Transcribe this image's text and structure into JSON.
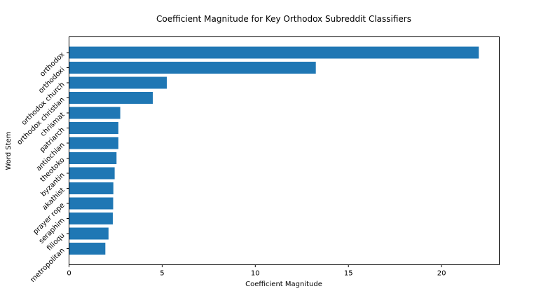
{
  "chart_data": {
    "type": "bar",
    "orientation": "horizontal",
    "title": "Coefficient Magnitude for Key Orthodox Subreddit Classifiers",
    "xlabel": "Coefficient Magnitude",
    "ylabel": "Word Stem",
    "categories": [
      "orthodox",
      "orthodoxi",
      "orthodox church",
      "orthodox christian",
      "chrismat",
      "patriarch",
      "antiochian",
      "theotoko",
      "byzantin",
      "akathist",
      "prayer rope",
      "seraphim",
      "filioqu",
      "metropolitan"
    ],
    "values": [
      22.0,
      13.25,
      5.25,
      4.5,
      2.75,
      2.65,
      2.65,
      2.55,
      2.45,
      2.38,
      2.37,
      2.35,
      2.12,
      1.95
    ],
    "xlim": [
      0,
      23.1
    ],
    "xticks": [
      0,
      5,
      10,
      15,
      20
    ],
    "grid": false,
    "bar_color": "#1f77b4"
  }
}
